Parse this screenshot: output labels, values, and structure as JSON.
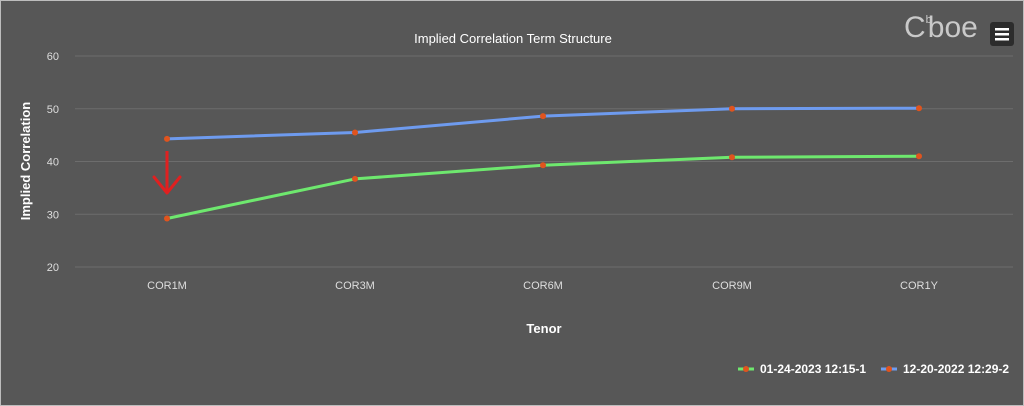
{
  "brand": {
    "logo_text": "C",
    "logo_sup": "b",
    "logo_rest": "boe",
    "logo_color": "#c9c9c9"
  },
  "menu": {
    "icon": "hamburger-menu-icon"
  },
  "annotation": {
    "icon": "red-down-arrow-icon",
    "color": "#e02020",
    "target_category": "COR1M"
  },
  "chart_data": {
    "type": "line",
    "title": "Implied Correlation Term Structure",
    "xlabel": "Tenor",
    "ylabel": "Implied Correlation",
    "categories": [
      "COR1M",
      "COR3M",
      "COR6M",
      "COR9M",
      "COR1Y"
    ],
    "ylim": [
      20,
      60
    ],
    "yticks": [
      20,
      30,
      40,
      50,
      60
    ],
    "grid": true,
    "legend_position": "bottom-right",
    "series": [
      {
        "name": "01-24-2023 12:15-1",
        "color": "#6ee86e",
        "marker_color": "#e0541e",
        "values": [
          29.2,
          36.7,
          39.3,
          40.8,
          41.0
        ]
      },
      {
        "name": "12-20-2022 12:29-2",
        "color": "#6e9bef",
        "marker_color": "#e0541e",
        "values": [
          44.3,
          45.5,
          48.6,
          50.0,
          50.1
        ]
      }
    ]
  }
}
